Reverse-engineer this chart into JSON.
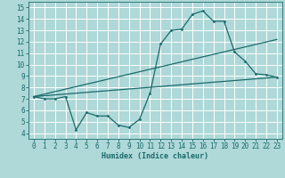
{
  "title": "",
  "xlabel": "Humidex (Indice chaleur)",
  "ylabel": "",
  "bg_color": "#afd8d8",
  "grid_color": "#ffffff",
  "line_color": "#1a6b6b",
  "xlim": [
    -0.5,
    23.5
  ],
  "ylim": [
    3.5,
    15.5
  ],
  "yticks": [
    4,
    5,
    6,
    7,
    8,
    9,
    10,
    11,
    12,
    13,
    14,
    15
  ],
  "xticks": [
    0,
    1,
    2,
    3,
    4,
    5,
    6,
    7,
    8,
    9,
    10,
    11,
    12,
    13,
    14,
    15,
    16,
    17,
    18,
    19,
    20,
    21,
    22,
    23
  ],
  "line1_x": [
    0,
    1,
    2,
    3,
    4,
    5,
    6,
    7,
    8,
    9,
    10,
    11,
    12,
    13,
    14,
    15,
    16,
    17,
    18,
    19,
    20,
    21,
    22,
    23
  ],
  "line1_y": [
    7.2,
    7.0,
    7.0,
    7.2,
    4.3,
    5.8,
    5.5,
    5.5,
    4.7,
    4.5,
    5.2,
    7.5,
    11.8,
    13.0,
    13.1,
    14.4,
    14.7,
    13.8,
    13.8,
    11.1,
    10.3,
    9.2,
    9.1,
    8.9
  ],
  "line2_x": [
    0,
    23
  ],
  "line2_y": [
    7.2,
    8.9
  ],
  "line3_x": [
    0,
    23
  ],
  "line3_y": [
    7.2,
    12.2
  ],
  "marker_size": 2.0,
  "line_width": 0.9,
  "tick_fontsize": 5.5,
  "xlabel_fontsize": 6.0
}
